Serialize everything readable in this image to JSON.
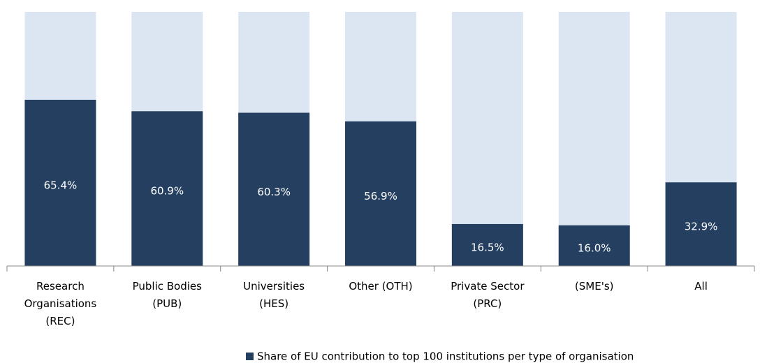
{
  "chart_data": {
    "type": "bar",
    "categories": [
      "Research Organisations (REC)",
      "Public Bodies (PUB)",
      "Universities (HES)",
      "Other (OTH)",
      "Private Sector (PRC)",
      "(SME's)",
      "All"
    ],
    "series": [
      {
        "name": "Share of EU contribution to top 100 institutions per type of organisation",
        "color": "#243f60",
        "values": [
          65.4,
          60.9,
          60.3,
          56.9,
          16.5,
          16.0,
          32.9
        ],
        "value_labels": [
          "65.4%",
          "60.9%",
          "60.3%",
          "56.9%",
          "16.5%",
          "16.0%",
          "32.9%"
        ]
      }
    ],
    "ylim": [
      0,
      100
    ],
    "background_color": "#dce6f2",
    "legend": "bottom"
  }
}
